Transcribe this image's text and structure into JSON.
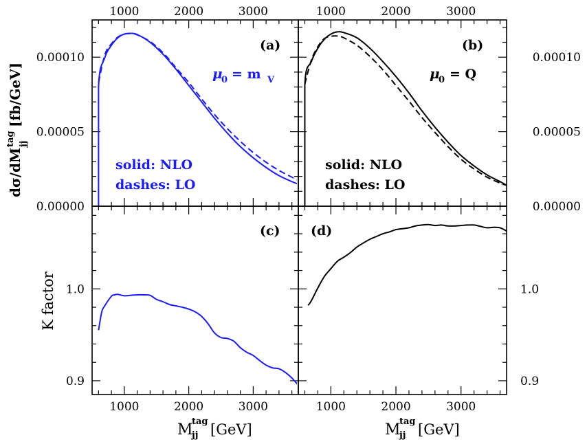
{
  "colors": {
    "blue": "#1a1aff",
    "black": "#000000"
  },
  "axes": {
    "x_ticks": [
      "1000",
      "2000",
      "3000"
    ],
    "x_tick_values": [
      1000,
      2000,
      3000
    ],
    "xlim": [
      500,
      3700
    ],
    "top_y_ticks": [
      "0.00000",
      "0.00005",
      "0.00010"
    ],
    "top_y_tick_values": [
      0,
      5e-05,
      0.0001
    ],
    "top_ylim": [
      0,
      0.000125
    ],
    "bottom_y_ticks": [
      "0.9",
      "1.0"
    ],
    "bottom_y_tick_values": [
      0.9,
      1.0
    ],
    "bottom_ylim": [
      0.885,
      1.09
    ],
    "top_ylabel_main": "dσ/dM",
    "top_ylabel_sub": "jj",
    "top_ylabel_sup": "tag",
    "top_ylabel_units": "[fb/GeV]",
    "bottom_ylabel": "K factor",
    "xlabel_main": "M",
    "xlabel_sub": "jj",
    "xlabel_sup": "tag",
    "xlabel_units": "[GeV]"
  },
  "panels": {
    "a": {
      "tag": "(a)",
      "scale_mu": "μ",
      "scale_sub": "0",
      "scale_eq": "= m",
      "scale_eq_sub": "V",
      "legend_solid": "solid: NLO",
      "legend_dashes": "dashes: LO"
    },
    "b": {
      "tag": "(b)",
      "scale_mu": "μ",
      "scale_sub": "0",
      "scale_eq": "= Q",
      "legend_solid": "solid: NLO",
      "legend_dashes": "dashes: LO"
    },
    "c": {
      "tag": "(c)"
    },
    "d": {
      "tag": "(d)"
    }
  },
  "chart_data": [
    {
      "panel": "a",
      "type": "line",
      "color": "#1a1aff",
      "xlim": [
        500,
        3700
      ],
      "ylim": [
        0,
        0.000125
      ],
      "series": [
        {
          "name": "NLO",
          "style": "solid",
          "x": [
            600,
            600,
            700,
            800,
            900,
            1000,
            1100,
            1200,
            1400,
            1600,
            1800,
            2000,
            2200,
            2400,
            2600,
            2800,
            3000,
            3200,
            3400,
            3600,
            3700
          ],
          "y": [
            0,
            8e-05,
            0.0001,
            0.000108,
            0.000113,
            0.0001155,
            0.000116,
            0.0001152,
            0.00011,
            0.000102,
            9.2e-05,
            8.1e-05,
            7e-05,
            5.9e-05,
            4.9e-05,
            4e-05,
            3.25e-05,
            2.6e-05,
            2.05e-05,
            1.65e-05,
            1.48e-05
          ]
        },
        {
          "name": "LO",
          "style": "dashed",
          "x": [
            600,
            700,
            800,
            900,
            1000,
            1100,
            1200,
            1400,
            1600,
            1800,
            2000,
            2200,
            2400,
            2600,
            2800,
            3000,
            3200,
            3400,
            3600,
            3700
          ],
          "y": [
            8.3e-05,
            0.000102,
            0.000109,
            0.0001135,
            0.0001155,
            0.0001158,
            0.000115,
            0.0001105,
            0.000103,
            9.3e-05,
            8.3e-05,
            7.2e-05,
            6.15e-05,
            5.2e-05,
            4.35e-05,
            3.6e-05,
            2.95e-05,
            2.4e-05,
            1.95e-05,
            1.75e-05
          ]
        }
      ]
    },
    {
      "panel": "b",
      "type": "line",
      "color": "#000000",
      "xlim": [
        500,
        3700
      ],
      "ylim": [
        0,
        0.000125
      ],
      "series": [
        {
          "name": "NLO",
          "style": "solid",
          "x": [
            600,
            600,
            700,
            800,
            900,
            1000,
            1100,
            1200,
            1400,
            1600,
            1800,
            2000,
            2200,
            2400,
            2600,
            2800,
            3000,
            3200,
            3400,
            3600,
            3700
          ],
          "y": [
            0,
            8.1e-05,
            9.7e-05,
            0.000106,
            0.000112,
            0.0001155,
            0.000117,
            0.0001165,
            0.000113,
            0.000106,
            9.7e-05,
            8.7e-05,
            7.6e-05,
            6.4e-05,
            5.3e-05,
            4.3e-05,
            3.4e-05,
            2.7e-05,
            2.1e-05,
            1.65e-05,
            1.4e-05
          ]
        },
        {
          "name": "LO",
          "style": "dashed",
          "x": [
            600,
            700,
            800,
            900,
            1000,
            1100,
            1200,
            1400,
            1600,
            1800,
            2000,
            2200,
            2400,
            2600,
            2800,
            3000,
            3200,
            3400,
            3600,
            3700
          ],
          "y": [
            8.2e-05,
            9.8e-05,
            0.000107,
            0.0001125,
            0.000114,
            0.0001142,
            0.000113,
            0.000108,
            0.0001005,
            9.15e-05,
            8.1e-05,
            7.05e-05,
            5.95e-05,
            4.95e-05,
            4e-05,
            3.15e-05,
            2.5e-05,
            1.95e-05,
            1.55e-05,
            1.4e-05
          ]
        }
      ]
    },
    {
      "panel": "c",
      "type": "line",
      "color": "#1a1aff",
      "xlim": [
        500,
        3700
      ],
      "ylim": [
        0.885,
        1.09
      ],
      "series": [
        {
          "name": "K",
          "style": "solid",
          "x": [
            600,
            650,
            700,
            800,
            850,
            900,
            1000,
            1100,
            1200,
            1300,
            1400,
            1500,
            1600,
            1700,
            1800,
            1900,
            2000,
            2100,
            2200,
            2300,
            2400,
            2500,
            2600,
            2700,
            2800,
            2900,
            3000,
            3100,
            3200,
            3300,
            3400,
            3500,
            3600,
            3700
          ],
          "y": [
            0.955,
            0.975,
            0.982,
            0.992,
            0.9935,
            0.994,
            0.9925,
            0.993,
            0.9935,
            0.9935,
            0.993,
            0.9885,
            0.986,
            0.983,
            0.9815,
            0.98,
            0.978,
            0.975,
            0.97,
            0.962,
            0.952,
            0.947,
            0.946,
            0.943,
            0.936,
            0.931,
            0.9275,
            0.922,
            0.917,
            0.914,
            0.913,
            0.909,
            0.903,
            0.895
          ]
        }
      ]
    },
    {
      "panel": "d",
      "type": "line",
      "color": "#000000",
      "xlim": [
        500,
        3700
      ],
      "ylim": [
        0.885,
        1.09
      ],
      "series": [
        {
          "name": "K",
          "style": "solid",
          "x": [
            650,
            700,
            800,
            900,
            1000,
            1100,
            1200,
            1300,
            1400,
            1500,
            1600,
            1700,
            1800,
            1900,
            2000,
            2100,
            2200,
            2300,
            2400,
            2500,
            2600,
            2700,
            2800,
            2900,
            3000,
            3100,
            3200,
            3300,
            3400,
            3500,
            3600,
            3700
          ],
          "y": [
            0.982,
            0.987,
            1.001,
            1.0135,
            1.022,
            1.03,
            1.0345,
            1.0395,
            1.0455,
            1.05,
            1.054,
            1.057,
            1.06,
            1.062,
            1.0645,
            1.0655,
            1.0665,
            1.0685,
            1.0695,
            1.07,
            1.069,
            1.0695,
            1.0685,
            1.0685,
            1.069,
            1.0695,
            1.0695,
            1.068,
            1.0665,
            1.067,
            1.0665,
            1.063
          ]
        }
      ]
    }
  ]
}
